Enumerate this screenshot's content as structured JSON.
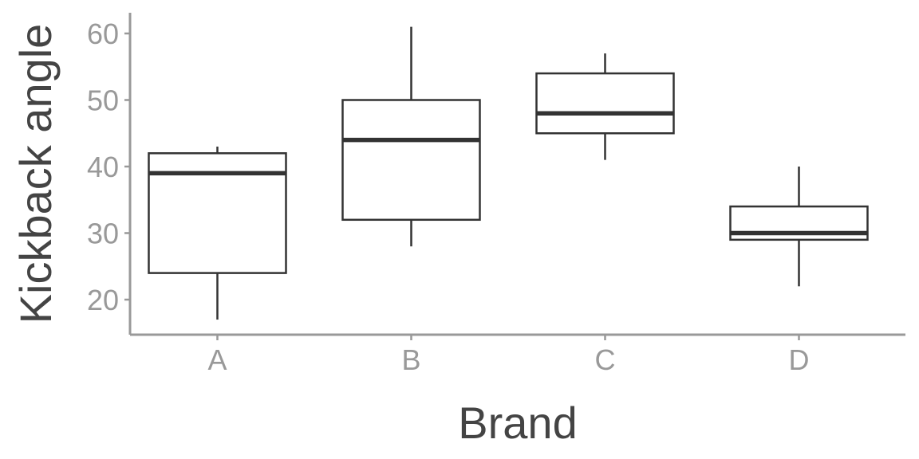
{
  "chart_data": {
    "type": "box",
    "xlabel": "Brand",
    "ylabel": "Kickback angle",
    "categories": [
      "A",
      "B",
      "C",
      "D"
    ],
    "ylim": [
      14.8,
      63
    ],
    "yticks": [
      20,
      30,
      40,
      50,
      60
    ],
    "ytick_labels": [
      "20",
      "30",
      "40",
      "50",
      "60"
    ],
    "grid": false,
    "boxes": [
      {
        "category": "A",
        "whisker_low": 17,
        "q1": 24,
        "median": 39,
        "q3": 42,
        "whisker_high": 43
      },
      {
        "category": "B",
        "whisker_low": 28,
        "q1": 32,
        "median": 44,
        "q3": 50,
        "whisker_high": 61
      },
      {
        "category": "C",
        "whisker_low": 41,
        "q1": 45,
        "median": 48,
        "q3": 54,
        "whisker_high": 57
      },
      {
        "category": "D",
        "whisker_low": 22,
        "q1": 29,
        "median": 30,
        "q3": 34,
        "whisker_high": 40
      }
    ],
    "colors": {
      "box_stroke": "#333333",
      "box_fill": "#ffffff",
      "axis": "#999999",
      "tick_text": "#999999",
      "title_text": "#444444"
    }
  }
}
